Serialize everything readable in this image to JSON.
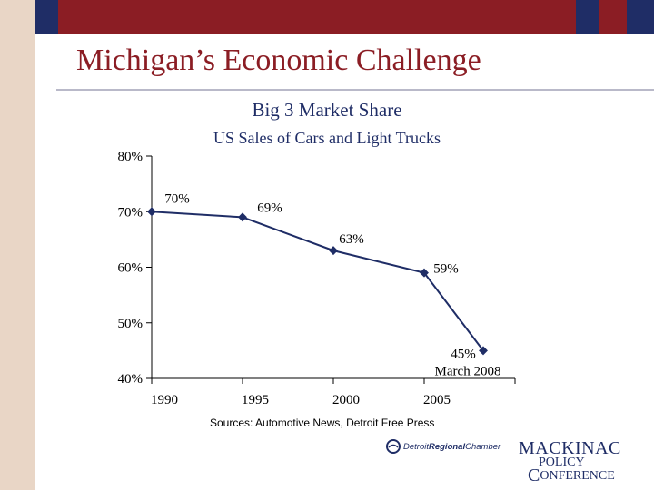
{
  "slide": {
    "title": "Michigan’s Economic Challenge",
    "sources": "Sources:  Automotive News, Detroit Free Press",
    "colors": {
      "title": "#8b1d24",
      "navy": "#1f2d66",
      "band": "#e9d6c6",
      "top_bar": [
        "#e9d6c6",
        "#1f2d66",
        "#8b1d24",
        "#1f2d66",
        "#8b1d24",
        "#1f2d66"
      ]
    },
    "logos": {
      "regional_chamber": {
        "part1": "Detroit",
        "part2": "Regional",
        "part3": "Chamber"
      },
      "policy_conference": {
        "line1": "MACKINAC",
        "line2": "POLICY",
        "line3": "ONFERENCE",
        "initial": "C"
      }
    }
  },
  "chart_data": {
    "type": "line",
    "title": "Big 3 Market Share",
    "subtitle": "US Sales of Cars and Light Trucks",
    "x": [
      1990,
      1995,
      2000,
      2005,
      2008.25
    ],
    "y": [
      70,
      69,
      63,
      59,
      45
    ],
    "point_labels": [
      "70%",
      "69%",
      "63%",
      "59%",
      "45%"
    ],
    "annotation": "March 2008",
    "xticks": [
      "1990",
      "1995",
      "2000",
      "2005"
    ],
    "yticks": [
      "40%",
      "50%",
      "60%",
      "70%",
      "80%"
    ],
    "xlim": [
      1990,
      2010
    ],
    "ylim": [
      40,
      80
    ],
    "grid": false,
    "legend": "none",
    "line_color": "#1f2d66"
  }
}
